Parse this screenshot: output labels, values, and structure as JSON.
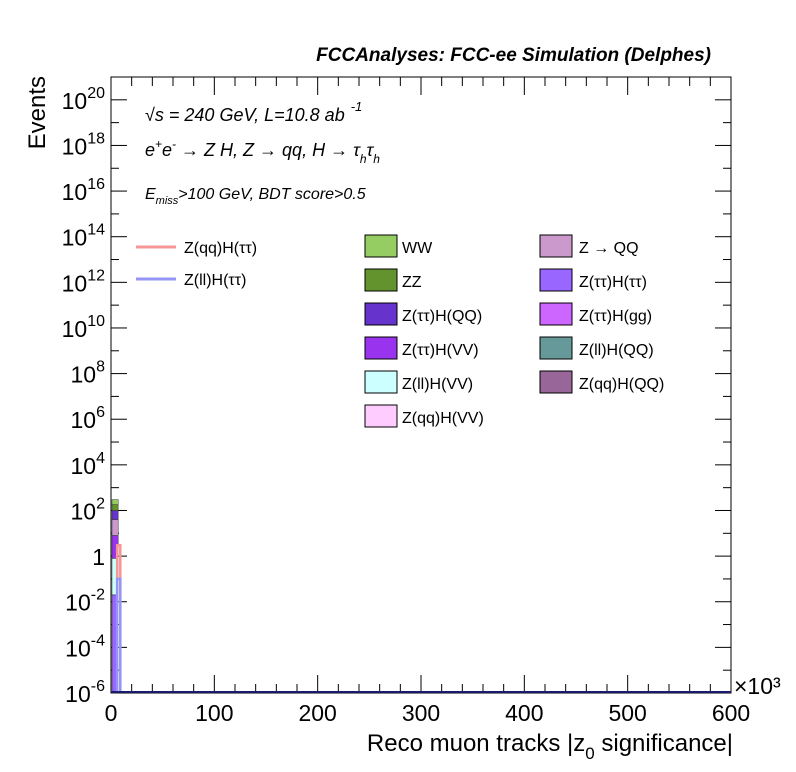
{
  "chart_data": {
    "type": "bar",
    "title": "FCCAnalyses: FCC-ee Simulation (Delphes)",
    "xlabel": "Reco muon tracks |z_0 significance|",
    "ylabel": "Events",
    "x_multiplier": "×10³",
    "xlim": [
      0,
      600
    ],
    "ylim": [
      1e-06,
      1e+21
    ],
    "yscale": "log",
    "x_ticks": [
      "0",
      "100",
      "200",
      "300",
      "400",
      "500",
      "600"
    ],
    "y_ticks": [
      {
        "base": "10",
        "exp": "20",
        "value": 1e+20
      },
      {
        "base": "10",
        "exp": "18",
        "value": 1e+18
      },
      {
        "base": "10",
        "exp": "16",
        "value": 1e+16
      },
      {
        "base": "10",
        "exp": "14",
        "value": 100000000000000.0
      },
      {
        "base": "10",
        "exp": "12",
        "value": 1000000000000.0
      },
      {
        "base": "10",
        "exp": "10",
        "value": 10000000000.0
      },
      {
        "base": "10",
        "exp": "8",
        "value": 100000000.0
      },
      {
        "base": "10",
        "exp": "6",
        "value": 1000000.0
      },
      {
        "base": "10",
        "exp": "4",
        "value": 10000.0
      },
      {
        "base": "10",
        "exp": "2",
        "value": 100.0
      },
      {
        "base": "1",
        "exp": "",
        "value": 1
      },
      {
        "base": "10",
        "exp": "-2",
        "value": 0.01
      },
      {
        "base": "10",
        "exp": "-4",
        "value": 0.0001
      },
      {
        "base": "10",
        "exp": "-6",
        "value": 1e-06
      }
    ],
    "annotations": {
      "line1_sqrt": "√s",
      "line1": " = 240 GeV, L=10.8 ab",
      "line1_sup": "-1",
      "line2_a": "e",
      "line2_a_sup": "+",
      "line2_b": "e",
      "line2_b_sup": "-",
      "line2_c": " → Z H, Z  → qq, H  → τ",
      "line2_h1": "h",
      "line2_tau": "τ",
      "line2_h2": "h",
      "line3_E": "E",
      "line3_sub": "miss",
      "line3_rest": ">100 GeV, BDT score>0.5"
    },
    "signal_legend": [
      {
        "name": "Z(qq)H(ττ)",
        "color": "#f79595"
      },
      {
        "name": "Z(ll)H(ττ)",
        "color": "#9595f7"
      }
    ],
    "background_legend_col1": [
      {
        "name": "WW",
        "color": "#96cd63"
      },
      {
        "name": "ZZ",
        "color": "#62932d"
      },
      {
        "name": "Z(ττ)H(QQ)",
        "color": "#6633cc"
      },
      {
        "name": "Z(ττ)H(VV)",
        "color": "#9933ee"
      },
      {
        "name": "Z(ll)H(VV)",
        "color": "#ccffff"
      },
      {
        "name": "Z(qq)H(VV)",
        "color": "#ffccff"
      }
    ],
    "background_legend_col2": [
      {
        "name": "Z → QQ",
        "color": "#cc99cc"
      },
      {
        "name": "Z(ττ)H(ττ)",
        "color": "#9966ff"
      },
      {
        "name": "Z(ττ)H(gg)",
        "color": "#cc66ff"
      },
      {
        "name": "Z(ll)H(QQ)",
        "color": "#669999"
      },
      {
        "name": "Z(qq)H(QQ)",
        "color": "#996699"
      }
    ],
    "stack_first_bin": {
      "x_range": [
        0,
        6
      ],
      "segments": [
        {
          "name": "Z(ττ)H(ττ)",
          "from": 1e-06,
          "to": 0.02,
          "color": "#9966ff"
        },
        {
          "name": "Z(ll)H(VV)",
          "from": 0.02,
          "to": 0.8,
          "color": "#ccffff"
        },
        {
          "name": "Z(ττ)H(VV)",
          "from": 0.8,
          "to": 8,
          "color": "#9933ee"
        },
        {
          "name": "Z → QQ",
          "from": 8,
          "to": 40,
          "color": "#cc99cc"
        },
        {
          "name": "Z(ττ)H(QQ)",
          "from": 40,
          "to": 100,
          "color": "#6633cc"
        },
        {
          "name": "ZZ",
          "from": 100,
          "to": 180,
          "color": "#62932d"
        },
        {
          "name": "WW",
          "from": 180,
          "to": 300,
          "color": "#96cd63"
        }
      ]
    },
    "signal_first_bin": [
      {
        "name": "Z(qq)H(ττ)",
        "x_range": [
          6,
          9
        ],
        "value": 3
      },
      {
        "name": "Z(ll)H(ττ)",
        "x_range": [
          6,
          9
        ],
        "value": 0.1
      }
    ]
  }
}
